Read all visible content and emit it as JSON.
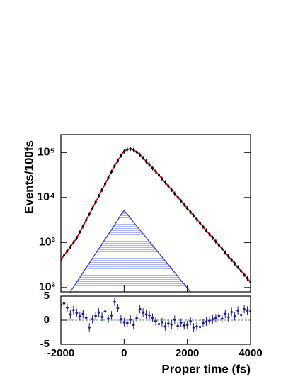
{
  "chart_data": [
    {
      "type": "line",
      "ylabel": "Events/100fs",
      "log": true,
      "x": [
        -2000,
        -1900,
        -1800,
        -1700,
        -1600,
        -1500,
        -1400,
        -1300,
        -1200,
        -1100,
        -1000,
        -900,
        -800,
        -700,
        -600,
        -500,
        -400,
        -300,
        -200,
        -100,
        0,
        100,
        200,
        300,
        400,
        500,
        600,
        700,
        800,
        900,
        1000,
        1100,
        1200,
        1300,
        1400,
        1500,
        1600,
        1700,
        1800,
        1900,
        2000,
        2100,
        2200,
        2300,
        2400,
        2500,
        2600,
        2700,
        2800,
        2900,
        3000,
        3100,
        3200,
        3300,
        3400,
        3500,
        3600,
        3700,
        3800,
        3900,
        4000
      ],
      "xlim": [
        -2000,
        4000
      ],
      "ylim": [
        80,
        250000
      ],
      "yticks": [
        {
          "value": 100,
          "label": "10²"
        },
        {
          "value": 1000,
          "label": "10³"
        },
        {
          "value": 10000,
          "label": "10⁴"
        },
        {
          "value": 100000,
          "label": "10⁵"
        }
      ],
      "series": [
        {
          "color": "#000000",
          "line_color": "#d40000",
          "values": [
            417,
            513,
            646,
            794,
            1000,
            1260,
            1700,
            2290,
            3160,
            4270,
            5750,
            7940,
            10700,
            14800,
            20000,
            27500,
            37200,
            50100,
            66100,
            85100,
            105000,
            117000,
            120000,
            115000,
            102000,
            89100,
            75900,
            63100,
            53700,
            44700,
            38000,
            31500,
            26100,
            21600,
            17900,
            14800,
            12200,
            10100,
            8390,
            6950,
            5750,
            4760,
            3950,
            3270,
            2700,
            2240,
            1850,
            1530,
            1270,
            1050,
            871,
            721,
            597,
            494,
            409,
            339,
            281,
            232,
            192,
            159,
            132
          ]
        },
        {
          "color": "#3c3cd0",
          "x": [
            -1700,
            -1600,
            -1500,
            -1400,
            -1300,
            -1200,
            -1100,
            -1000,
            -900,
            -800,
            -700,
            -600,
            -500,
            -400,
            -300,
            -200,
            -100,
            0,
            100,
            200,
            300,
            400,
            500,
            600,
            700,
            800,
            900,
            1000,
            1100,
            1200,
            1300,
            1400,
            1500,
            1600,
            1700,
            1800,
            1900,
            2000,
            2100
          ],
          "values": [
            81,
            103,
            132,
            168,
            215,
            274,
            350,
            447,
            570,
            728,
            929,
            1190,
            1510,
            1930,
            2470,
            3150,
            4200,
            5130,
            4300,
            3450,
            2830,
            2320,
            1910,
            1560,
            1280,
            1050,
            863,
            708,
            581,
            476,
            391,
            321,
            263,
            216,
            177,
            145,
            119,
            98,
            80
          ]
        }
      ]
    },
    {
      "type": "scatter",
      "xlabel": "Proper time (fs)",
      "xlim": [
        -2000,
        4000
      ],
      "xticks": [
        -2000,
        0,
        2000,
        4000
      ],
      "ylim": [
        -5,
        5
      ],
      "yticks": [
        -5,
        0,
        5
      ],
      "color": "#1a1a8c",
      "zero_color": "#6a8a6a",
      "values": [
        3.2,
        3.5,
        2.6,
        1.2,
        2.1,
        1.5,
        0.8,
        1.3,
        0.5,
        -1.5,
        0.2,
        0.9,
        1.6,
        0.7,
        1.8,
        0.3,
        1.0,
        3.8,
        2.5,
        0.2,
        -0.4,
        -0.6,
        0.1,
        -1.0,
        0.4,
        2.3,
        1.6,
        1.2,
        1.0,
        0.5,
        -0.2,
        -0.8,
        -0.4,
        -1.3,
        -0.7,
        -0.9,
        0.1,
        -1.2,
        -0.5,
        -1.1,
        -1.0,
        -0.2,
        -1.5,
        -1.3,
        -1.4,
        -0.6,
        -0.3,
        -0.1,
        0.2,
        0.4,
        0.9,
        0.3,
        1.3,
        0.6,
        1.7,
        0.8,
        2.0,
        1.1,
        2.3,
        2.0,
        1.8
      ]
    }
  ]
}
